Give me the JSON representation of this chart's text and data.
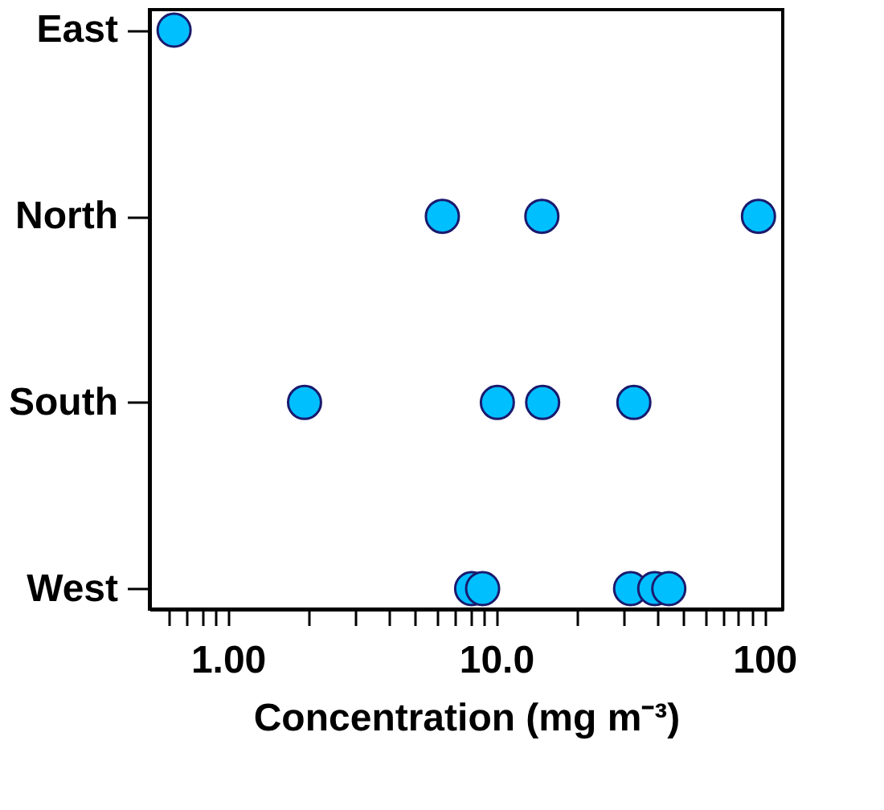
{
  "chart_data": {
    "type": "scatter",
    "orientation": "horizontal",
    "xlabel": "Concentration (mg m⁻³)",
    "categories": [
      "East",
      "North",
      "South",
      "West"
    ],
    "series": [
      {
        "color": "#00bfff",
        "x": [
          "East",
          "North",
          "North",
          "North",
          "South",
          "South",
          "South",
          "South",
          "West",
          "West",
          "West",
          "West",
          "West"
        ],
        "values": [
          0.63,
          6.3,
          14.8,
          95,
          1.93,
          10.1,
          14.9,
          32.6,
          8.1,
          8.9,
          31.7,
          39,
          44
        ]
      }
    ],
    "xlim": [
      0.51,
      117
    ],
    "log": "x",
    "marker": "circle",
    "grid": false,
    "xticks": [
      {
        "value": 0.6,
        "label": null
      },
      {
        "value": 0.7,
        "label": null
      },
      {
        "value": 0.8,
        "label": null
      },
      {
        "value": 0.9,
        "label": null
      },
      {
        "value": 1,
        "label": "1.00"
      },
      {
        "value": 2,
        "label": null
      },
      {
        "value": 3,
        "label": null
      },
      {
        "value": 4,
        "label": null
      },
      {
        "value": 5,
        "label": null
      },
      {
        "value": 6,
        "label": null
      },
      {
        "value": 7,
        "label": null
      },
      {
        "value": 8,
        "label": null
      },
      {
        "value": 9,
        "label": null
      },
      {
        "value": 10,
        "label": "10.0"
      },
      {
        "value": 20,
        "label": null
      },
      {
        "value": 30,
        "label": null
      },
      {
        "value": 40,
        "label": null
      },
      {
        "value": 50,
        "label": null
      },
      {
        "value": 60,
        "label": null
      },
      {
        "value": 70,
        "label": null
      },
      {
        "value": 80,
        "label": null
      },
      {
        "value": 90,
        "label": null
      },
      {
        "value": 100,
        "label": "100"
      }
    ]
  }
}
